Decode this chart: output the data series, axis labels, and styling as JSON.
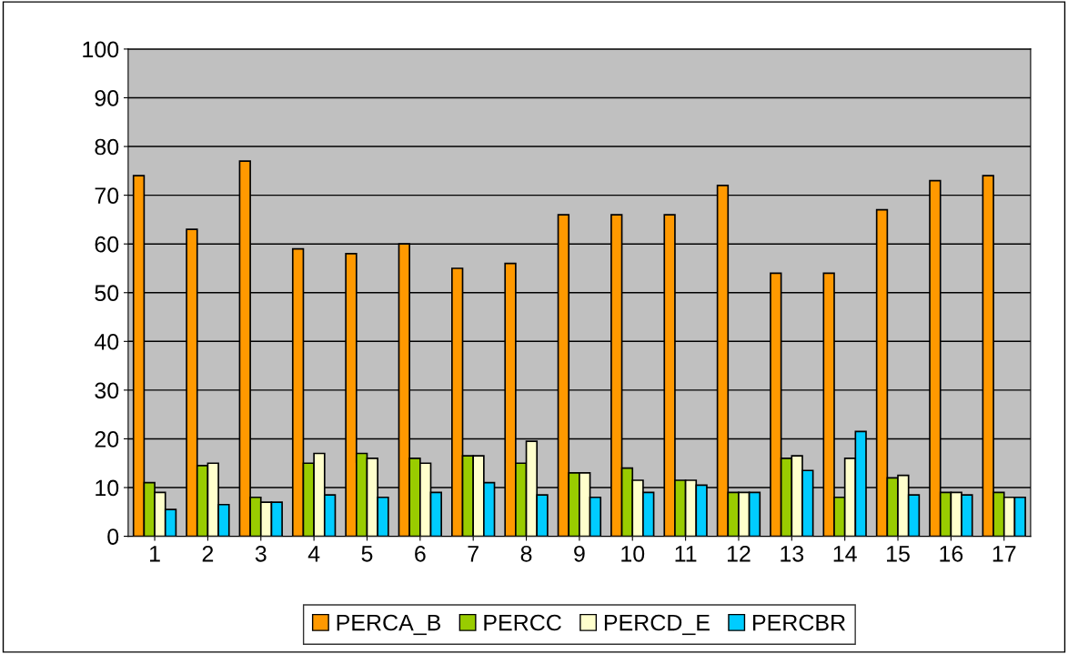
{
  "chart_data": {
    "type": "bar",
    "categories": [
      "1",
      "2",
      "3",
      "4",
      "5",
      "6",
      "7",
      "8",
      "9",
      "10",
      "11",
      "12",
      "13",
      "14",
      "15",
      "16",
      "17"
    ],
    "series": [
      {
        "name": "PERCA_B",
        "color": "#ff9900",
        "values": [
          74,
          63,
          77,
          59,
          58,
          60,
          55,
          56,
          66,
          66,
          66,
          72,
          54,
          54,
          67,
          73,
          74
        ]
      },
      {
        "name": "PERCC",
        "color": "#99cc00",
        "values": [
          11,
          14.5,
          8,
          15,
          17,
          16,
          16.5,
          15,
          13,
          14,
          11.5,
          9,
          16,
          8,
          12,
          9,
          9
        ]
      },
      {
        "name": "PERCD_E",
        "color": "#ffffcc",
        "values": [
          9,
          15,
          7,
          17,
          16,
          15,
          16.5,
          19.5,
          13,
          11.5,
          11.5,
          9,
          16.5,
          16,
          12.5,
          9,
          8
        ]
      },
      {
        "name": "PERCBR",
        "color": "#00ccff",
        "values": [
          5.5,
          6.5,
          7,
          8.5,
          8,
          9,
          11,
          8.5,
          8,
          9,
          10.5,
          9,
          13.5,
          21.5,
          8.5,
          8.5,
          8
        ]
      }
    ],
    "ylim": [
      0,
      100
    ],
    "yticks": [
      0,
      10,
      20,
      30,
      40,
      50,
      60,
      70,
      80,
      90,
      100
    ],
    "grid": "y",
    "legend": "bottom"
  }
}
